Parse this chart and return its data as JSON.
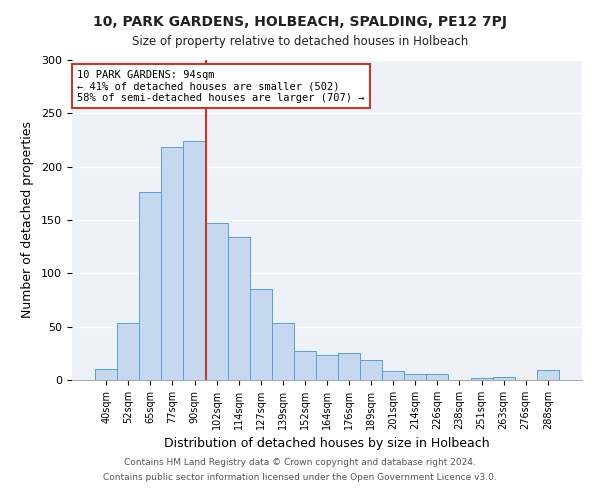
{
  "title": "10, PARK GARDENS, HOLBEACH, SPALDING, PE12 7PJ",
  "subtitle": "Size of property relative to detached houses in Holbeach",
  "xlabel": "Distribution of detached houses by size in Holbeach",
  "ylabel": "Number of detached properties",
  "categories": [
    "40sqm",
    "52sqm",
    "65sqm",
    "77sqm",
    "90sqm",
    "102sqm",
    "114sqm",
    "127sqm",
    "139sqm",
    "152sqm",
    "164sqm",
    "176sqm",
    "189sqm",
    "201sqm",
    "214sqm",
    "226sqm",
    "238sqm",
    "251sqm",
    "263sqm",
    "276sqm",
    "288sqm"
  ],
  "values": [
    10,
    53,
    176,
    218,
    224,
    147,
    134,
    85,
    53,
    27,
    23,
    25,
    19,
    8,
    6,
    6,
    0,
    2,
    3,
    0,
    9
  ],
  "bar_color": "#c5d8f0",
  "bar_edge_color": "#5a9fd4",
  "vline_index": 4,
  "vline_color": "#c0392b",
  "annotation_line1": "10 PARK GARDENS: 94sqm",
  "annotation_line2": "← 41% of detached houses are smaller (502)",
  "annotation_line3": "58% of semi-detached houses are larger (707) →",
  "annotation_box_color": "#ffffff",
  "annotation_box_edge": "#c0392b",
  "ylim": [
    0,
    300
  ],
  "yticks": [
    0,
    50,
    100,
    150,
    200,
    250,
    300
  ],
  "footer_line1": "Contains HM Land Registry data © Crown copyright and database right 2024.",
  "footer_line2": "Contains public sector information licensed under the Open Government Licence v3.0.",
  "bg_color": "#eef2f8",
  "fig_bg_color": "#ffffff"
}
